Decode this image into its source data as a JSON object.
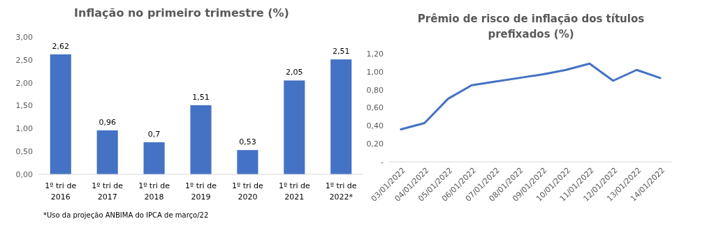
{
  "chart_data": [
    {
      "type": "bar",
      "title": "Inflação no primeiro trimestre (%)",
      "categories": [
        "1º tri de 2016",
        "1º tri de 2017",
        "1º tri de 2018",
        "1º tri de 2019",
        "1º tri de 2020",
        "1º tri de 2021",
        "1º tri de 2022*"
      ],
      "values": [
        2.62,
        0.96,
        0.7,
        1.51,
        0.53,
        2.05,
        2.51
      ],
      "value_labels": [
        "2,62",
        "0,96",
        "0,7",
        "1,51",
        "0,53",
        "2,05",
        "2,51"
      ],
      "color": "#4472c4",
      "ylim": [
        0,
        3
      ],
      "yticks": [
        {
          "value": 0,
          "label": "0,00"
        },
        {
          "value": 0.5,
          "label": "0,50"
        },
        {
          "value": 1,
          "label": "1,00"
        },
        {
          "value": 1.5,
          "label": "1,50"
        },
        {
          "value": 2,
          "label": "2,00"
        },
        {
          "value": 2.5,
          "label": "2,50"
        },
        {
          "value": 3,
          "label": "3,00"
        }
      ],
      "grid": false,
      "annotations": [
        "*Uso da projeção ANBIMA do IPCA de março/22"
      ]
    },
    {
      "type": "line",
      "title": "Prêmio de risco de inflação dos títulos prefixados (%)",
      "categories": [
        "03/01/2022",
        "04/01/2022",
        "05/01/2022",
        "06/01/2022",
        "07/01/2022",
        "08/01/2022",
        "09/01/2022",
        "10/01/2022",
        "11/01/2022",
        "12/01/2022",
        "13/01/2022",
        "14/01/2022"
      ],
      "values": [
        0.36,
        0.43,
        0.7,
        0.85,
        0.89,
        0.93,
        0.97,
        1.02,
        1.09,
        0.9,
        1.02,
        0.93
      ],
      "color": "#4472c4",
      "ylim": [
        0,
        1.2
      ],
      "yticks": [
        {
          "value": 0,
          "label": "-"
        },
        {
          "value": 0.2,
          "label": "0,20"
        },
        {
          "value": 0.4,
          "label": "0,40"
        },
        {
          "value": 0.6,
          "label": "0,60"
        },
        {
          "value": 0.8,
          "label": "0,80"
        },
        {
          "value": 1,
          "label": "1,00"
        },
        {
          "value": 1.2,
          "label": "1,20"
        }
      ],
      "grid": false,
      "marker": "none",
      "line_style": "solid"
    }
  ]
}
